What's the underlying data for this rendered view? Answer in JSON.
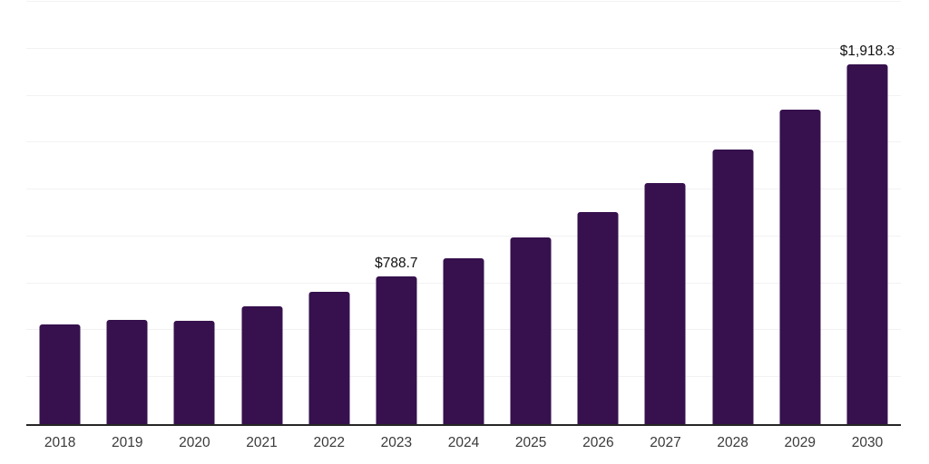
{
  "chart_data": {
    "type": "bar",
    "title": "",
    "xlabel": "",
    "ylabel": "",
    "categories": [
      "2018",
      "2019",
      "2020",
      "2021",
      "2022",
      "2023",
      "2024",
      "2025",
      "2026",
      "2027",
      "2028",
      "2029",
      "2030"
    ],
    "values": [
      533,
      556,
      551,
      627,
      704,
      788.7,
      885,
      995,
      1130,
      1286,
      1464,
      1676,
      1918.3
    ],
    "data_labels": [
      "",
      "",
      "",
      "",
      "",
      "$788.7",
      "",
      "",
      "",
      "",
      "",
      "",
      "$1,918.3"
    ],
    "ylim": [
      0,
      2250
    ],
    "gridline_step": 250,
    "grid": "horizontal-only",
    "legend_position": "none",
    "y_axis_labels_visible": false
  },
  "style": {
    "bar_color": "#36114d",
    "grid_color": "#f2f2f2",
    "axis_color": "#262626",
    "tick_color": "#3a3a3a",
    "label_color": "#111111",
    "background_color": "#ffffff"
  }
}
